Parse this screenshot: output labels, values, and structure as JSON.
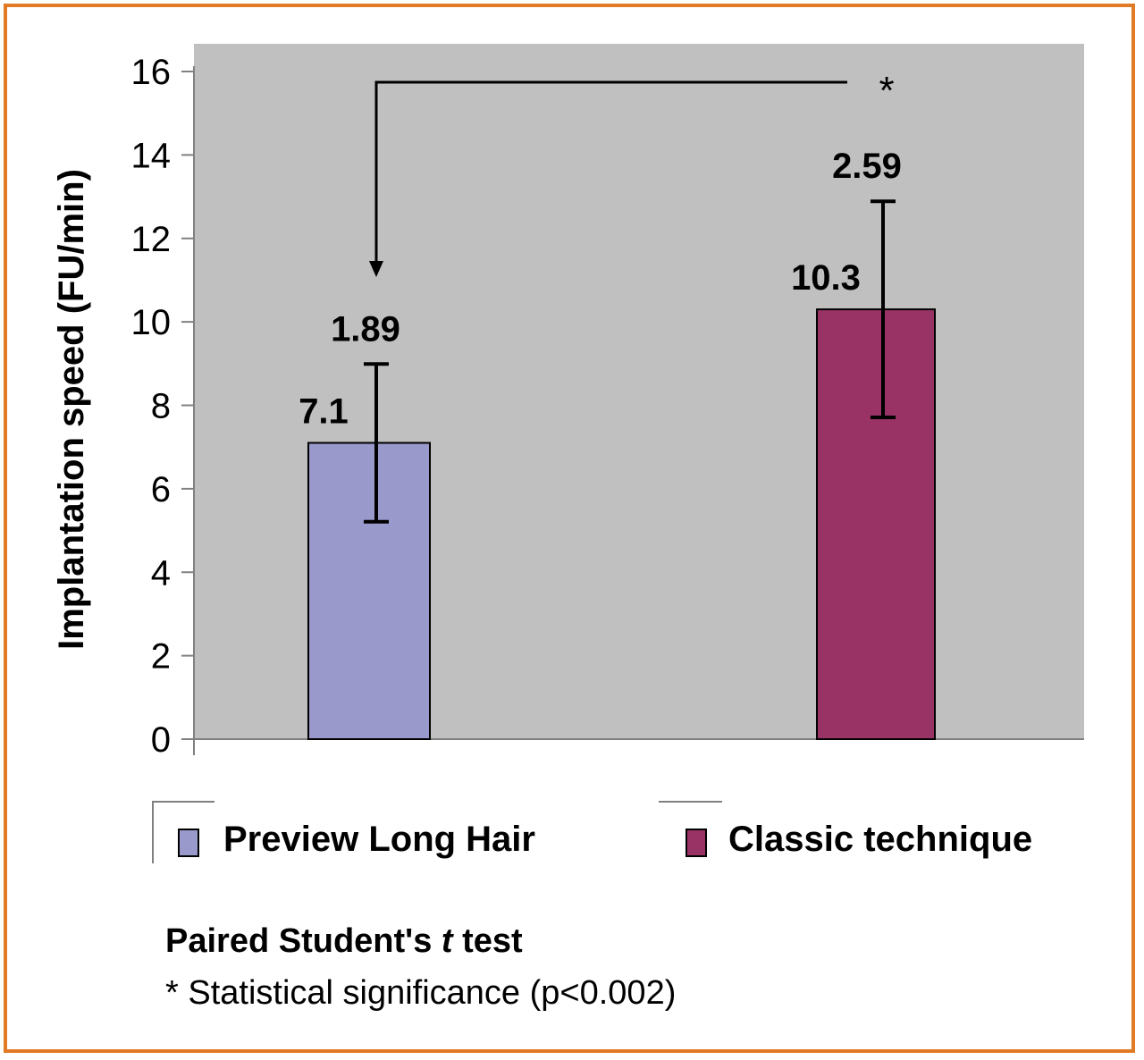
{
  "chart_data": {
    "type": "bar",
    "categories": [
      "Preview Long Hair",
      "Classic technique"
    ],
    "values": [
      7.1,
      10.3
    ],
    "error_sd": [
      1.89,
      2.59
    ],
    "value_labels": [
      "7.1",
      "10.3"
    ],
    "error_labels": [
      "1.89",
      "2.59"
    ],
    "colors": [
      "#9999cc",
      "#993366"
    ],
    "ylabel": "Implantation speed (FU/min)",
    "ylim": [
      0,
      16
    ],
    "yticks": [
      0,
      2,
      4,
      6,
      8,
      10,
      12,
      14,
      16
    ],
    "plot_background": "#c0c0c0",
    "grid": false,
    "legend_position": "bottom",
    "significance_marker": "*",
    "legend": [
      {
        "label": "Preview Long Hair",
        "color": "#9999cc"
      },
      {
        "label": "Classic technique",
        "color": "#993366"
      }
    ]
  },
  "footnote": {
    "title_prefix": "Paired Student's ",
    "title_italic": "t",
    "title_suffix": " test",
    "line": "* Statistical significance (p<0.002)"
  },
  "colors": {
    "frame": "#e07a24"
  }
}
